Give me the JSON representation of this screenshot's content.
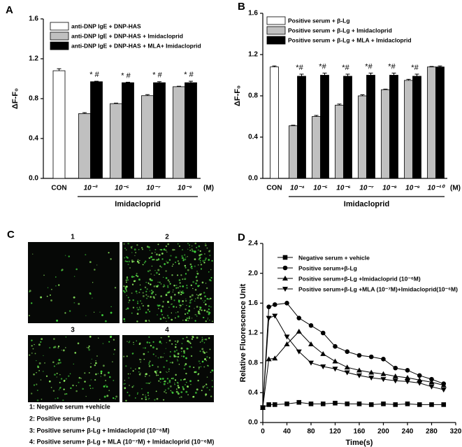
{
  "chart_data": [
    {
      "type": "bar",
      "label": "A",
      "y_label": "ΔF-F₀",
      "categories": [
        "CON",
        "10⁻³",
        "10⁻⁵",
        "10⁻⁷",
        "10⁻⁹"
      ],
      "unit": "(M)",
      "group_label": "Imidacloprid",
      "series": [
        {
          "name": "anti-DNP IgE + DNP-HAS",
          "color": "#ffffff",
          "values": [
            1.08,
            null,
            null,
            null,
            null
          ],
          "errors": [
            0.02,
            null,
            null,
            null,
            null
          ]
        },
        {
          "name": "anti-DNP IgE + DNP-HAS + Imidacloprid",
          "color": "#c0c0c0",
          "values": [
            null,
            0.65,
            0.75,
            0.83,
            0.92
          ],
          "errors": [
            null,
            0.01,
            0.005,
            0.01,
            0.005
          ]
        },
        {
          "name": "anti-DNP IgE + DNP-HAS + MLA+ Imidacloprid",
          "color": "#000000",
          "values": [
            null,
            0.97,
            0.96,
            0.96,
            0.96
          ],
          "errors": [
            null,
            0.005,
            0.005,
            0.01,
            0.015
          ],
          "annotations": [
            null,
            "* #",
            "* #",
            "* #",
            "* #"
          ]
        }
      ],
      "ylim": [
        0,
        1.6
      ],
      "yticks": [
        {
          "value": 0,
          "label": "0.0"
        },
        0.4,
        0.8,
        1.2,
        1.6
      ]
    },
    {
      "type": "bar",
      "label": "B",
      "y_label": "ΔF-F₀",
      "categories": [
        "CON",
        "10⁻⁴",
        "10⁻⁵",
        "10⁻⁶",
        "10⁻⁷",
        "10⁻⁸",
        "10⁻⁹",
        "10⁻¹⁰"
      ],
      "unit": "(M)",
      "group_label": "Imidacloprid",
      "series": [
        {
          "name": "Positive serum + β-Lg",
          "color": "#ffffff",
          "values": [
            1.08,
            null,
            null,
            null,
            null,
            null,
            null,
            null
          ],
          "errors": [
            0.01,
            null,
            null,
            null,
            null,
            null,
            null,
            null
          ]
        },
        {
          "name": "Positive serum + β-Lg + Imidacloprid",
          "color": "#c0c0c0",
          "values": [
            null,
            0.51,
            0.6,
            0.71,
            0.8,
            0.86,
            0.95,
            1.08
          ],
          "errors": [
            null,
            0.005,
            0.01,
            0.01,
            0.01,
            0.005,
            0.01,
            0.005
          ]
        },
        {
          "name": "Positive serum + β-Lg + MLA + Imidacloprid",
          "color": "#000000",
          "values": [
            null,
            0.99,
            1.0,
            0.99,
            1.0,
            1.0,
            0.99,
            1.08
          ],
          "errors": [
            null,
            0.02,
            0.02,
            0.02,
            0.02,
            0.02,
            0.02,
            0.01
          ],
          "annotations": [
            null,
            "*#",
            "*#",
            "*#",
            "*#",
            "*#",
            "*#",
            null
          ]
        }
      ],
      "ylim": [
        0,
        1.6
      ],
      "yticks": [
        {
          "value": 0,
          "label": "0.0"
        },
        0.4,
        0.8,
        1.2,
        1.6
      ]
    },
    {
      "type": "line",
      "label": "D",
      "x_label": "Time(s)",
      "y_label": "Relative Fluorescence Unit",
      "x": [
        0,
        10,
        20,
        40,
        60,
        80,
        100,
        120,
        140,
        160,
        180,
        200,
        220,
        240,
        260,
        280,
        300
      ],
      "series": [
        {
          "name": "Negative serum + vehicle",
          "marker": "square",
          "color": "#000000",
          "values": [
            0.2,
            0.24,
            0.24,
            0.25,
            0.27,
            0.25,
            0.25,
            0.26,
            0.25,
            0.25,
            0.24,
            0.25,
            0.24,
            0.25,
            0.24,
            0.24,
            0.24
          ]
        },
        {
          "name": "Positive serum+β-Lg",
          "marker": "circle",
          "color": "#000000",
          "values": [
            0.2,
            1.55,
            1.58,
            1.6,
            1.4,
            1.3,
            1.2,
            1.02,
            0.95,
            0.9,
            0.88,
            0.85,
            0.73,
            0.7,
            0.63,
            0.58,
            0.52
          ]
        },
        {
          "name": "Positive serum+β-Lg +Imidacloprid (10⁻⁶M)",
          "marker": "triangle-up",
          "color": "#000000",
          "values": [
            0.2,
            0.85,
            0.86,
            1.05,
            1.22,
            1.05,
            0.92,
            0.82,
            0.74,
            0.7,
            0.67,
            0.65,
            0.62,
            0.6,
            0.57,
            0.54,
            0.5
          ]
        },
        {
          "name": "Positive serum+β-Lg +MLA (10⁻⁷M)+Imidacloprid(10⁻⁶M)",
          "marker": "triangle-down",
          "color": "#000000",
          "values": [
            0.2,
            1.4,
            1.43,
            1.15,
            0.95,
            0.8,
            0.75,
            0.72,
            0.67,
            0.63,
            0.6,
            0.58,
            0.56,
            0.55,
            0.53,
            0.48,
            0.44
          ]
        }
      ],
      "xlim": [
        0,
        320
      ],
      "xticks": [
        0,
        40,
        80,
        120,
        160,
        200,
        240,
        280,
        320
      ],
      "ylim": [
        0,
        2.4
      ],
      "yticks": [
        {
          "value": 0,
          "label": "0.0"
        },
        0.4,
        0.8,
        1.2,
        1.6,
        {
          "value": 2,
          "label": "2.0"
        },
        2.4
      ]
    }
  ],
  "image_panel": {
    "label": "C",
    "images": [
      "1",
      "2",
      "3",
      "4"
    ],
    "legend": [
      "1: Negative serum +vehicle",
      "2: Positive serum+ β-Lg",
      "3: Positive serum+ β-Lg + Imidacloprid (10⁻⁶M)",
      "4: Positive serum+ β-Lg + MLA (10⁻⁷M) + Imidacloprid (10⁻⁶M)"
    ]
  }
}
